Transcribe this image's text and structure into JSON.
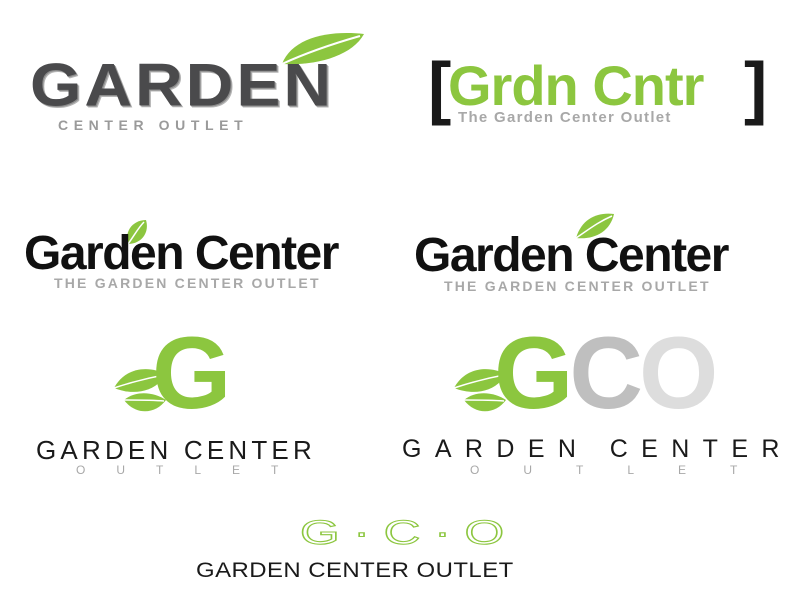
{
  "logos": [
    {
      "wordmark": "GARDEN",
      "tagline": "CENTER OUTLET",
      "leaf_icon": "leaf-icon"
    },
    {
      "bracket_left": "[",
      "wordmark": "Grdn Cntr",
      "bracket_right": "]",
      "tagline": "The Garden Center Outlet"
    },
    {
      "wordmark": "Garden Center",
      "tagline": "THE GARDEN CENTER OUTLET",
      "leaf_icon": "leaf-icon"
    },
    {
      "wordmark": "Garden Center",
      "tagline": "THE GARDEN CENTER OUTLET",
      "leaf_icon": "leaf-icon"
    },
    {
      "monogram": "G",
      "wordmark": "GARDEN CENTER",
      "tagline": "OUTLET",
      "leaf_icon": "double-leaf-icon"
    },
    {
      "monogram_g": "G",
      "monogram_c": "C",
      "monogram_o": "O",
      "wordmark": "GARDEN CENTER",
      "tagline": "OUTLET",
      "leaf_icon": "double-leaf-icon"
    },
    {
      "monogram": "G·C·O",
      "wordmark": "GARDEN CENTER OUTLET"
    }
  ],
  "colors": {
    "green": "#8cc63f",
    "dark": "#1a1a1a",
    "dark_gray": "#4a4a4c",
    "light_gray": "#a8a8a8",
    "mid_gray": "#bfbfbf",
    "pale_gray": "#dddddd"
  }
}
